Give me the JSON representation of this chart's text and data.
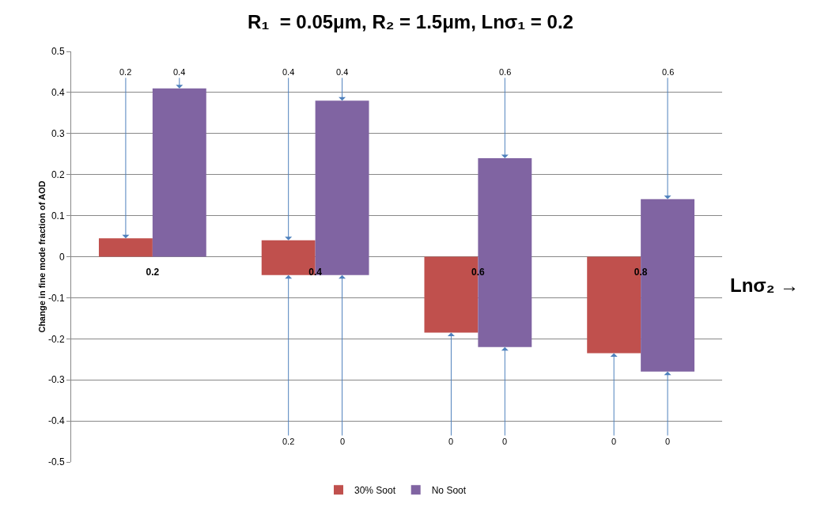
{
  "chart_data": {
    "type": "bar",
    "title": "R₁  = 0.05μm, R₂ = 1.5μm, Lnσ₁ = 0.2",
    "xlabel": "Lnσ₂ →",
    "ylabel": "Change in fine mode fraction of AOD",
    "categories": [
      "0.2",
      "0.4",
      "0.6",
      "0.8"
    ],
    "series": [
      {
        "name": "30% Soot",
        "color": "#c0504d",
        "base": [
          0,
          -0.045,
          -0.185,
          -0.235
        ],
        "values": [
          0.045,
          0.085,
          0.185,
          0.235
        ]
      },
      {
        "name": "No Soot",
        "color": "#8064a2",
        "base": [
          0,
          -0.045,
          -0.22,
          -0.28
        ],
        "values": [
          0.41,
          0.425,
          0.46,
          0.42
        ]
      }
    ],
    "ylim": [
      -0.5,
      0.5
    ],
    "yticks": [
      -0.5,
      -0.4,
      -0.3,
      -0.2,
      -0.1,
      0,
      0.1,
      0.2,
      0.3,
      0.4,
      0.5
    ],
    "grid": "y",
    "legend": "bottom",
    "annotations": [
      {
        "text": "0.2",
        "y": 0.045
      },
      {
        "text": "0.4",
        "y": 0.41
      },
      {
        "text": "0.4",
        "y": 0.04
      },
      {
        "text": "0.4",
        "y": 0.38
      },
      {
        "text": "0.2",
        "y": -0.045
      },
      {
        "text": "0",
        "y": -0.045
      },
      {
        "text": "0.6",
        "y": 0.24
      },
      {
        "text": "0",
        "y": -0.185
      },
      {
        "text": "0",
        "y": -0.22
      },
      {
        "text": "0.6",
        "y": 0.14
      },
      {
        "text": "0",
        "y": -0.235
      },
      {
        "text": "0",
        "y": -0.28
      }
    ]
  }
}
